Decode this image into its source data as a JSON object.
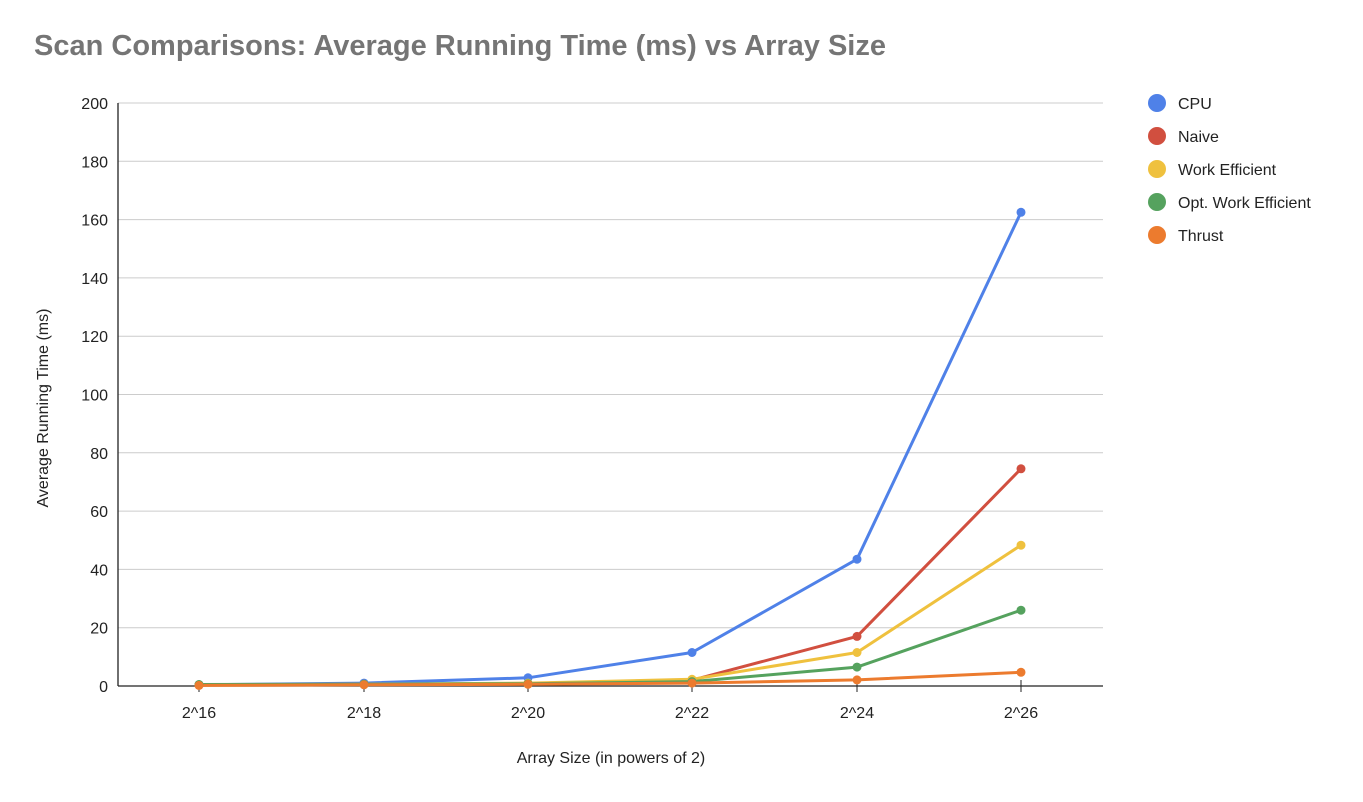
{
  "chart_data": {
    "type": "line",
    "title": "Scan Comparisons: Average Running Time (ms) vs Array Size",
    "xlabel": "Array Size (in powers of 2)",
    "ylabel": "Average Running Time (ms)",
    "categories": [
      "2^16",
      "2^18",
      "2^20",
      "2^22",
      "2^24",
      "2^26"
    ],
    "ylim": [
      0,
      200
    ],
    "yticks": [
      0,
      20,
      40,
      60,
      80,
      100,
      120,
      140,
      160,
      180,
      200
    ],
    "grid": true,
    "legend_position": "right",
    "series": [
      {
        "name": "CPU",
        "color": "#4f81e8",
        "values": [
          0.4,
          1.0,
          2.8,
          11.5,
          43.5,
          162.5
        ]
      },
      {
        "name": "Naive",
        "color": "#d14f3f",
        "values": [
          0.3,
          0.6,
          0.9,
          2.0,
          17.0,
          74.5
        ]
      },
      {
        "name": "Work Efficient",
        "color": "#efc13e",
        "values": [
          0.4,
          0.6,
          1.0,
          2.3,
          11.5,
          48.3
        ]
      },
      {
        "name": "Opt. Work Efficient",
        "color": "#55a25e",
        "values": [
          0.5,
          0.6,
          0.8,
          1.5,
          6.5,
          26.0
        ]
      },
      {
        "name": "Thrust",
        "color": "#ec7b2e",
        "values": [
          0.2,
          0.4,
          0.6,
          1.0,
          2.1,
          4.7
        ]
      }
    ]
  }
}
